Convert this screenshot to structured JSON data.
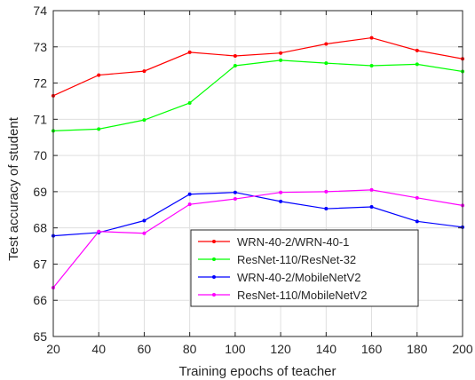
{
  "chart_data": {
    "type": "line",
    "title": "",
    "xlabel": "Training epochs of teacher",
    "ylabel": "Test accuracy of student",
    "x": [
      20,
      40,
      60,
      80,
      100,
      120,
      140,
      160,
      180,
      200
    ],
    "xlim": [
      20,
      200
    ],
    "ylim": [
      65,
      74
    ],
    "xticks": [
      20,
      40,
      60,
      80,
      100,
      120,
      140,
      160,
      180,
      200
    ],
    "yticks": [
      65,
      66,
      67,
      68,
      69,
      70,
      71,
      72,
      73,
      74
    ],
    "grid": true,
    "legend_position": "lower-right",
    "series": [
      {
        "name": "WRN-40-2/WRN-40-1",
        "color": "#ff0000",
        "values": [
          71.65,
          72.22,
          72.33,
          72.85,
          72.75,
          72.83,
          73.08,
          73.25,
          72.9,
          72.67
        ]
      },
      {
        "name": "ResNet-110/ResNet-32",
        "color": "#00ff00",
        "values": [
          70.68,
          70.73,
          70.98,
          71.45,
          72.48,
          72.63,
          72.55,
          72.48,
          72.52,
          72.32
        ]
      },
      {
        "name": "WRN-40-2/MobileNetV2",
        "color": "#0000ff",
        "values": [
          67.78,
          67.87,
          68.2,
          68.93,
          68.98,
          68.73,
          68.53,
          68.58,
          68.18,
          68.02
        ]
      },
      {
        "name": "ResNet-110/MobileNetV2",
        "color": "#ff00ff",
        "values": [
          66.35,
          67.9,
          67.85,
          68.65,
          68.8,
          68.98,
          69.0,
          69.05,
          68.83,
          68.62
        ]
      }
    ]
  }
}
